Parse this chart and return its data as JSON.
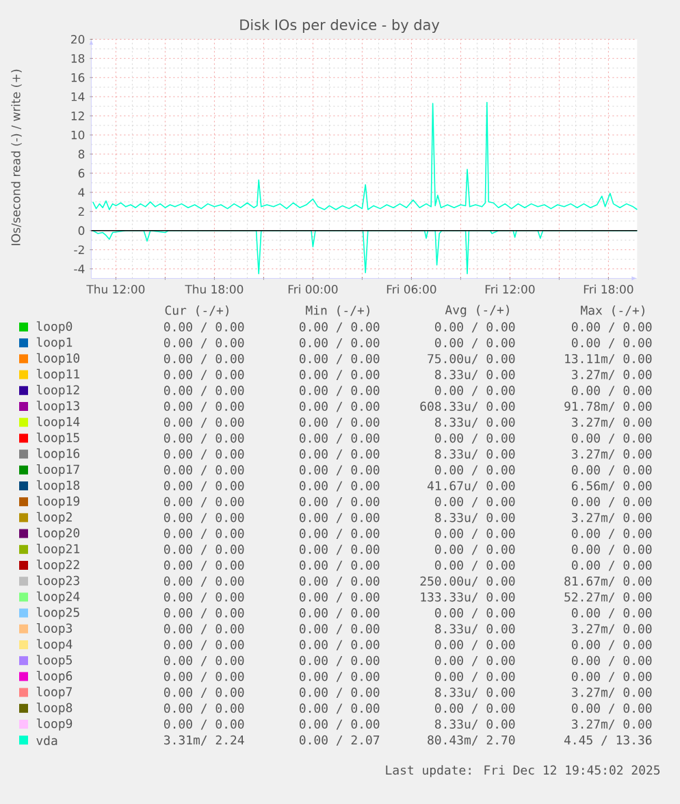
{
  "chart_data": {
    "type": "line",
    "title": "Disk IOs per device - by day",
    "ylabel": "IOs/second read (-) / write (+)",
    "xlim": [
      "2025-12-11T10:30",
      "2025-12-12T19:45"
    ],
    "xticks": [
      {
        "value": "2025-12-11T12:00",
        "label": "Thu 12:00"
      },
      {
        "value": "2025-12-11T15:00",
        "label": null
      },
      {
        "value": "2025-12-11T18:00",
        "label": "Thu 18:00"
      },
      {
        "value": "2025-12-11T21:00",
        "label": null
      },
      {
        "value": "2025-12-12T00:00",
        "label": "Fri 00:00"
      },
      {
        "value": "2025-12-12T03:00",
        "label": null
      },
      {
        "value": "2025-12-12T06:00",
        "label": "Fri 06:00"
      },
      {
        "value": "2025-12-12T09:00",
        "label": null
      },
      {
        "value": "2025-12-12T12:00",
        "label": "Fri 12:00"
      },
      {
        "value": "2025-12-12T15:00",
        "label": null
      },
      {
        "value": "2025-12-12T18:00",
        "label": "Fri 18:00"
      }
    ],
    "ylim": [
      -5,
      20
    ],
    "yticks": [
      -4,
      -2,
      0,
      2,
      4,
      6,
      8,
      10,
      12,
      14,
      16,
      18,
      20
    ],
    "grid": true,
    "legend": "bottom",
    "marker": "none",
    "ref_lines": [
      {
        "axis": "y",
        "value": 0,
        "color": "#000000"
      }
    ],
    "series": [
      {
        "name": "loop0",
        "color": "#00cc00",
        "values": [
          null,
          null
        ]
      },
      {
        "name": "loop1",
        "color": "#0066b3",
        "values": [
          null,
          null
        ]
      },
      {
        "name": "loop10",
        "color": "#ff8000",
        "values": [
          null,
          null
        ]
      },
      {
        "name": "loop11",
        "color": "#ffcc00",
        "values": [
          null,
          null
        ]
      },
      {
        "name": "loop12",
        "color": "#330099",
        "values": [
          null,
          null
        ]
      },
      {
        "name": "loop13",
        "color": "#990099",
        "values": [
          null,
          null
        ]
      },
      {
        "name": "loop14",
        "color": "#ccff00",
        "values": [
          null,
          null
        ]
      },
      {
        "name": "loop15",
        "color": "#ff0000",
        "values": [
          null,
          null
        ]
      },
      {
        "name": "loop16",
        "color": "#808080",
        "values": [
          null,
          null
        ]
      },
      {
        "name": "loop17",
        "color": "#008f00",
        "values": [
          null,
          null
        ]
      },
      {
        "name": "loop18",
        "color": "#00487d",
        "values": [
          null,
          null
        ]
      },
      {
        "name": "loop19",
        "color": "#b35a00",
        "values": [
          null,
          null
        ]
      },
      {
        "name": "loop2",
        "color": "#b38f00",
        "values": [
          null,
          null
        ]
      },
      {
        "name": "loop20",
        "color": "#6b006b",
        "values": [
          null,
          null
        ]
      },
      {
        "name": "loop21",
        "color": "#8fb300",
        "values": [
          null,
          null
        ]
      },
      {
        "name": "loop22",
        "color": "#b30000",
        "values": [
          null,
          null
        ]
      },
      {
        "name": "loop23",
        "color": "#bebebe",
        "values": [
          null,
          null
        ]
      },
      {
        "name": "loop24",
        "color": "#80ff80",
        "values": [
          null,
          null
        ]
      },
      {
        "name": "loop25",
        "color": "#80c9ff",
        "values": [
          null,
          null
        ]
      },
      {
        "name": "loop3",
        "color": "#ffc080",
        "values": [
          null,
          null
        ]
      },
      {
        "name": "loop4",
        "color": "#ffe680",
        "values": [
          null,
          null
        ]
      },
      {
        "name": "loop5",
        "color": "#aa80ff",
        "values": [
          null,
          null
        ]
      },
      {
        "name": "loop6",
        "color": "#ee00cc",
        "values": [
          null,
          null
        ]
      },
      {
        "name": "loop7",
        "color": "#ff8080",
        "values": [
          null,
          null
        ]
      },
      {
        "name": "loop8",
        "color": "#666600",
        "values": [
          null,
          null
        ]
      },
      {
        "name": "loop9",
        "color": "#ffbfff",
        "values": [
          null,
          null
        ]
      },
      {
        "name": "vda",
        "color": "#00ffcc",
        "x": [
          "2025-12-11T10:36",
          "2025-12-11T10:48",
          "2025-12-11T11:00",
          "2025-12-11T11:12",
          "2025-12-11T11:24",
          "2025-12-11T11:36",
          "2025-12-11T11:48",
          "2025-12-11T12:00",
          "2025-12-11T12:18",
          "2025-12-11T12:36",
          "2025-12-11T12:54",
          "2025-12-11T13:12",
          "2025-12-11T13:30",
          "2025-12-11T13:48",
          "2025-12-11T14:06",
          "2025-12-11T14:24",
          "2025-12-11T14:42",
          "2025-12-11T15:00",
          "2025-12-11T15:18",
          "2025-12-11T15:36",
          "2025-12-11T16:00",
          "2025-12-11T16:24",
          "2025-12-11T16:48",
          "2025-12-11T17:12",
          "2025-12-11T17:36",
          "2025-12-11T18:00",
          "2025-12-11T18:24",
          "2025-12-11T18:48",
          "2025-12-11T19:12",
          "2025-12-11T19:36",
          "2025-12-11T20:00",
          "2025-12-11T20:24",
          "2025-12-11T20:36",
          "2025-12-11T20:42",
          "2025-12-11T20:51",
          "2025-12-11T21:12",
          "2025-12-11T21:36",
          "2025-12-11T22:00",
          "2025-12-11T22:24",
          "2025-12-11T22:48",
          "2025-12-11T23:12",
          "2025-12-11T23:36",
          "2025-12-12T00:00",
          "2025-12-12T00:18",
          "2025-12-12T00:42",
          "2025-12-12T01:00",
          "2025-12-12T01:24",
          "2025-12-12T01:48",
          "2025-12-12T02:12",
          "2025-12-12T02:36",
          "2025-12-12T03:00",
          "2025-12-12T03:12",
          "2025-12-12T03:21",
          "2025-12-12T03:42",
          "2025-12-12T04:06",
          "2025-12-12T04:30",
          "2025-12-12T04:54",
          "2025-12-12T05:18",
          "2025-12-12T05:42",
          "2025-12-12T06:06",
          "2025-12-12T06:30",
          "2025-12-12T06:54",
          "2025-12-12T07:12",
          "2025-12-12T07:18",
          "2025-12-12T07:27",
          "2025-12-12T07:36",
          "2025-12-12T07:48",
          "2025-12-12T08:12",
          "2025-12-12T08:36",
          "2025-12-12T09:00",
          "2025-12-12T09:18",
          "2025-12-12T09:24",
          "2025-12-12T09:33",
          "2025-12-12T09:54",
          "2025-12-12T10:18",
          "2025-12-12T10:30",
          "2025-12-12T10:36",
          "2025-12-12T10:42",
          "2025-12-12T11:00",
          "2025-12-12T11:18",
          "2025-12-12T11:42",
          "2025-12-12T12:06",
          "2025-12-12T12:30",
          "2025-12-12T12:54",
          "2025-12-12T13:18",
          "2025-12-12T13:42",
          "2025-12-12T14:06",
          "2025-12-12T14:30",
          "2025-12-12T14:54",
          "2025-12-12T15:18",
          "2025-12-12T15:42",
          "2025-12-12T16:06",
          "2025-12-12T16:30",
          "2025-12-12T16:54",
          "2025-12-12T17:18",
          "2025-12-12T17:36",
          "2025-12-12T17:48",
          "2025-12-12T18:06",
          "2025-12-12T18:18",
          "2025-12-12T18:42",
          "2025-12-12T19:06",
          "2025-12-12T19:30",
          "2025-12-12T19:45"
        ],
        "values": [
          3.0,
          2.3,
          2.8,
          2.4,
          3.1,
          2.2,
          2.8,
          2.6,
          2.9,
          2.5,
          2.7,
          2.4,
          2.8,
          2.5,
          3.0,
          2.5,
          2.8,
          2.4,
          2.7,
          2.5,
          2.8,
          2.4,
          2.7,
          2.3,
          2.8,
          2.5,
          2.7,
          2.3,
          2.8,
          2.4,
          2.9,
          2.4,
          2.6,
          5.3,
          2.5,
          2.7,
          2.5,
          2.8,
          2.3,
          2.9,
          2.4,
          2.7,
          3.3,
          2.5,
          2.2,
          2.6,
          2.2,
          2.6,
          2.3,
          2.7,
          2.3,
          4.8,
          2.2,
          2.6,
          2.3,
          2.7,
          2.4,
          2.8,
          2.4,
          3.2,
          2.4,
          2.8,
          2.5,
          13.3,
          2.6,
          3.7,
          2.4,
          2.7,
          2.4,
          2.7,
          2.6,
          6.4,
          2.5,
          2.7,
          2.5,
          2.9,
          13.4,
          3.0,
          2.9,
          2.4,
          2.8,
          2.3,
          2.8,
          2.4,
          2.8,
          2.5,
          2.7,
          2.3,
          2.7,
          2.5,
          2.8,
          2.4,
          2.8,
          2.4,
          2.7,
          3.6,
          2.5,
          3.9,
          2.8,
          2.4,
          2.8,
          2.5,
          2.2
        ]
      },
      {
        "color": "#00ffcc",
        "x": [
          "2025-12-11T10:36",
          "2025-12-11T10:54",
          "2025-12-11T11:12",
          "2025-12-11T11:24",
          "2025-12-11T11:36",
          "2025-12-11T11:48",
          "2025-12-11T12:12",
          "2025-12-11T12:36",
          "2025-12-11T13:42",
          "2025-12-11T13:54",
          "2025-12-11T14:06",
          "2025-12-11T15:00",
          "2025-12-11T15:12",
          "2025-12-11T20:33",
          "2025-12-11T20:42",
          "2025-12-11T20:51",
          "2025-12-11T23:54",
          "2025-12-12T00:00",
          "2025-12-12T00:09",
          "2025-12-12T03:03",
          "2025-12-12T03:12",
          "2025-12-12T03:21",
          "2025-12-12T06:48",
          "2025-12-12T06:54",
          "2025-12-12T07:00",
          "2025-12-12T07:27",
          "2025-12-12T07:33",
          "2025-12-12T07:42",
          "2025-12-12T07:51",
          "2025-12-12T09:18",
          "2025-12-12T09:24",
          "2025-12-12T09:30",
          "2025-12-12T10:48",
          "2025-12-12T10:54",
          "2025-12-12T11:18",
          "2025-12-12T12:12",
          "2025-12-12T12:18",
          "2025-12-12T12:24",
          "2025-12-12T13:42",
          "2025-12-12T13:51",
          "2025-12-12T14:00",
          "2025-12-12T19:45"
        ],
        "values": [
          0,
          -0.3,
          -0.2,
          -0.5,
          -0.9,
          -0.2,
          -0.1,
          0,
          0,
          -1.1,
          0,
          -0.2,
          0,
          0,
          -4.5,
          0,
          0,
          -1.7,
          0,
          0,
          -4.4,
          0,
          0,
          -0.8,
          0,
          0,
          -3.6,
          -0.3,
          0,
          0,
          -4.5,
          0,
          0,
          -0.3,
          0,
          0,
          -0.7,
          0,
          0,
          -0.8,
          0,
          0
        ]
      }
    ],
    "annotations": [
      "Cur (-/+)",
      "Min (-/+)",
      "Avg (-/+)",
      "Max (-/+)",
      "0.00 / 0.00",
      "0.00 / 0.00",
      "0.00 / 0.00",
      "0.00 / 0.00",
      "0.00 / 0.00",
      "0.00 / 0.00",
      "0.00 / 0.00",
      "0.00 / 0.00",
      "0.00 / 0.00",
      "0.00 / 0.00",
      "75.00u/ 0.00",
      "13.11m/ 0.00",
      "0.00 / 0.00",
      "0.00 / 0.00",
      "8.33u/ 0.00",
      "3.27m/ 0.00",
      "0.00 / 0.00",
      "0.00 / 0.00",
      "0.00 / 0.00",
      "0.00 / 0.00",
      "0.00 / 0.00",
      "0.00 / 0.00",
      "608.33u/ 0.00",
      "91.78m/ 0.00",
      "0.00 / 0.00",
      "0.00 / 0.00",
      "8.33u/ 0.00",
      "3.27m/ 0.00",
      "0.00 / 0.00",
      "0.00 / 0.00",
      "0.00 / 0.00",
      "0.00 / 0.00",
      "0.00 / 0.00",
      "0.00 / 0.00",
      "8.33u/ 0.00",
      "3.27m/ 0.00",
      "0.00 / 0.00",
      "0.00 / 0.00",
      "0.00 / 0.00",
      "0.00 / 0.00",
      "0.00 / 0.00",
      "0.00 / 0.00",
      "41.67u/ 0.00",
      "6.56m/ 0.00",
      "0.00 / 0.00",
      "0.00 / 0.00",
      "0.00 / 0.00",
      "0.00 / 0.00",
      "0.00 / 0.00",
      "0.00 / 0.00",
      "8.33u/ 0.00",
      "3.27m/ 0.00",
      "0.00 / 0.00",
      "0.00 / 0.00",
      "0.00 / 0.00",
      "0.00 / 0.00",
      "0.00 / 0.00",
      "0.00 / 0.00",
      "0.00 / 0.00",
      "0.00 / 0.00",
      "0.00 / 0.00",
      "0.00 / 0.00",
      "0.00 / 0.00",
      "0.00 / 0.00",
      "0.00 / 0.00",
      "0.00 / 0.00",
      "250.00u/ 0.00",
      "81.67m/ 0.00",
      "0.00 / 0.00",
      "0.00 / 0.00",
      "133.33u/ 0.00",
      "52.27m/ 0.00",
      "0.00 / 0.00",
      "0.00 / 0.00",
      "0.00 / 0.00",
      "0.00 / 0.00",
      "0.00 / 0.00",
      "0.00 / 0.00",
      "8.33u/ 0.00",
      "3.27m/ 0.00",
      "0.00 / 0.00",
      "0.00 / 0.00",
      "0.00 / 0.00",
      "0.00 / 0.00",
      "0.00 / 0.00",
      "0.00 / 0.00",
      "0.00 / 0.00",
      "0.00 / 0.00",
      "0.00 / 0.00",
      "0.00 / 0.00",
      "0.00 / 0.00",
      "0.00 / 0.00",
      "0.00 / 0.00",
      "0.00 / 0.00",
      "8.33u/ 0.00",
      "3.27m/ 0.00",
      "0.00 / 0.00",
      "0.00 / 0.00",
      "0.00 / 0.00",
      "0.00 / 0.00",
      "0.00 / 0.00",
      "0.00 / 0.00",
      "8.33u/ 0.00",
      "3.27m/ 0.00",
      "3.31m/ 2.24",
      "0.00 / 2.07",
      "80.43m/ 2.70",
      "4.45 / 13.36",
      "Last update: Fri Dec 12 19:45:02 2025"
    ]
  }
}
